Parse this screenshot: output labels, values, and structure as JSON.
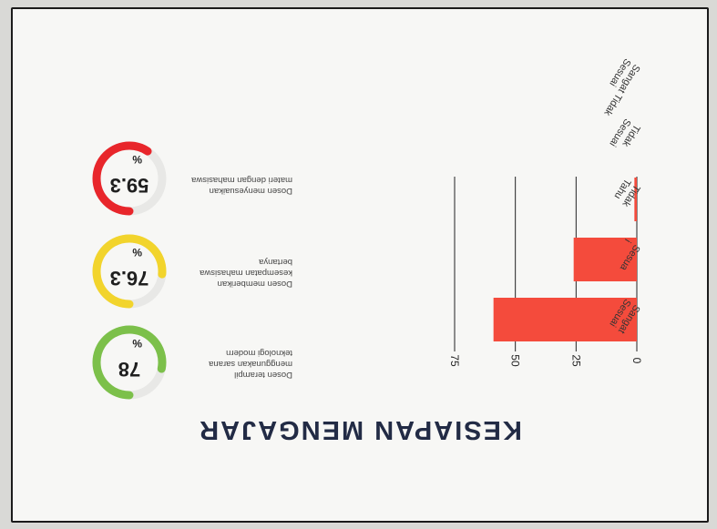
{
  "title": "KESIAPAN MENGAJAR",
  "gauges": [
    {
      "value": "78",
      "unit": "%",
      "pct": 78,
      "color": "#7cc04a",
      "label": "Dosen terampil menggunakan sarana teknologi modern"
    },
    {
      "value": "76.3",
      "unit": "%",
      "pct": 76.3,
      "color": "#f2d42c",
      "label": "Dosen memberikan kesempatan mahasiswa bertanya"
    },
    {
      "value": "59.3",
      "unit": "%",
      "pct": 59.3,
      "color": "#e8262b",
      "label": "Dosen menyesuaikan materi dengan mahasiswa"
    }
  ],
  "chart_data": {
    "type": "bar",
    "orientation": "horizontal",
    "categories": [
      "Sangat Sesuai",
      "Sesuai",
      "Tidak Tahu",
      "Tidak Sesuai",
      "Sangat Tidak Sesuai"
    ],
    "category_labels": [
      [
        "Sangat",
        "Sesuai"
      ],
      [
        "Sesua",
        "i"
      ],
      [
        "Tidak",
        "Tahu"
      ],
      [
        "Tidak",
        "Sesuai"
      ],
      [
        "Sangat Tidak",
        "Sesuai"
      ]
    ],
    "values": [
      59,
      26,
      1,
      0,
      0
    ],
    "xlim": [
      0,
      75
    ],
    "xticks": [
      "0",
      "25",
      "50",
      "75"
    ],
    "bar_color": "#f44b3c",
    "grid": true
  }
}
